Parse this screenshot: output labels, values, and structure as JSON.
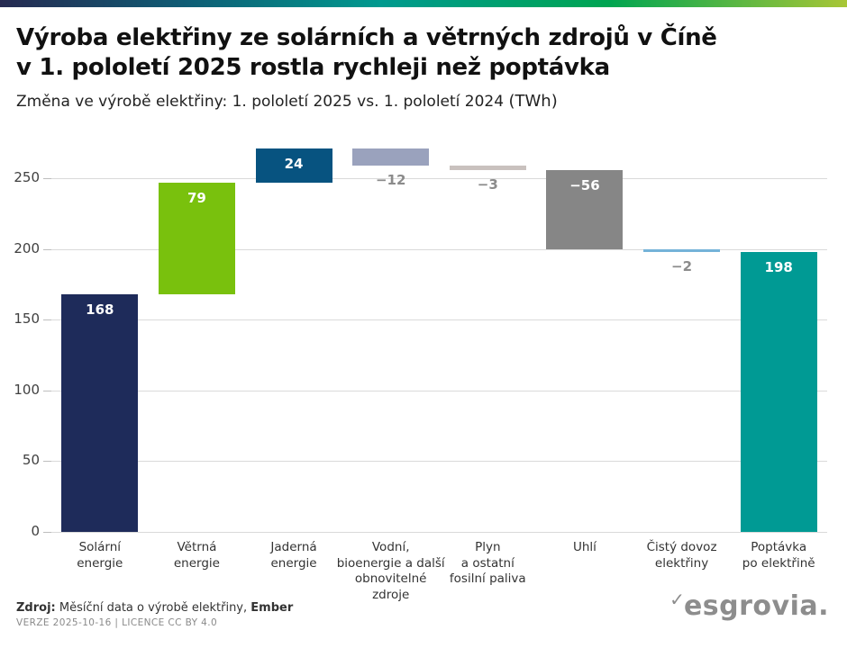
{
  "header": {
    "title_lines": [
      "Výroba elektřiny ze solárních a větrných zdrojů v Číně",
      "v 1. pololetí 2025 rostla rychleji než poptávka"
    ],
    "subtitle": "Změna ve výrobě elektřiny: 1. pololetí 2025 vs. 1. pololetí 2024 ",
    "subtitle_unit": "(TWh)"
  },
  "chart_data": {
    "type": "bar",
    "subtype": "waterfall",
    "title": "Výroba elektřiny ze solárních a větrných zdrojů v Číně v 1. pololetí 2025 rostla rychleji než poptávka",
    "xlabel": "",
    "ylabel": "",
    "unit": "TWh",
    "grid": true,
    "legend": "none",
    "ylim": [
      0,
      275
    ],
    "yticks": [
      0,
      50,
      100,
      150,
      200,
      250
    ],
    "categories": [
      "Solární\nenergie",
      "Větrná\nenergie",
      "Jaderná\nenergie",
      "Vodní,\nbioenergie a další\nobnovitelné\nzdroje",
      "Plyn\na ostatní\nfosilní paliva",
      "Uhlí",
      "Čistý dovoz\nelektřiny",
      "Poptávka\npo elektřině"
    ],
    "bars": [
      {
        "label": "Solární energie",
        "value": 168,
        "display": "168",
        "color": "#1e2b5a",
        "is_total": false
      },
      {
        "label": "Větrná energie",
        "value": 79,
        "display": "79",
        "color": "#79c10d",
        "is_total": false
      },
      {
        "label": "Jaderná energie",
        "value": 24,
        "display": "24",
        "color": "#075380",
        "is_total": false
      },
      {
        "label": "Vodní, bioenergie a další obnovitelné zdroje",
        "value": -12,
        "display": "−12",
        "color": "#9aa2bd",
        "is_total": false
      },
      {
        "label": "Plyn a ostatní fosilní paliva",
        "value": -3,
        "display": "−3",
        "color": "#c9c1be",
        "is_total": false
      },
      {
        "label": "Uhlí",
        "value": -56,
        "display": "−56",
        "color": "#868686",
        "is_total": false
      },
      {
        "label": "Čistý dovoz elektřiny",
        "value": -2,
        "display": "−2",
        "color": "#74b3d8",
        "is_total": false
      },
      {
        "label": "Poptávka po elektřině",
        "value": 198,
        "display": "198",
        "color": "#009a94",
        "is_total": true
      }
    ],
    "label_colors": {
      "inside": "#ffffff",
      "outside": "#8b8b8b"
    },
    "gridline_color": "#dadada"
  },
  "footer": {
    "source_prefix": "Zdroj:",
    "source_text": " Měsíční data o výrobě elektřiny, ",
    "source_org": "Ember",
    "version_line": "VERZE 2025-10-16 | LICENCE CC BY 4.0"
  },
  "logo": {
    "check": "✓",
    "text": "esgrovia."
  },
  "colors": {
    "gradient_stops": [
      "#262a51",
      "#0f5d75",
      "#009a8f",
      "#00a551",
      "#a8c636"
    ],
    "bar_navy": "#1e2b5a",
    "bar_green": "#79c10d",
    "bar_blue": "#075380",
    "bar_grayblue": "#9aa2bd",
    "bar_beige": "#c9c1be",
    "bar_gray": "#868686",
    "bar_lightblue": "#74b3d8",
    "bar_teal": "#009a94"
  }
}
